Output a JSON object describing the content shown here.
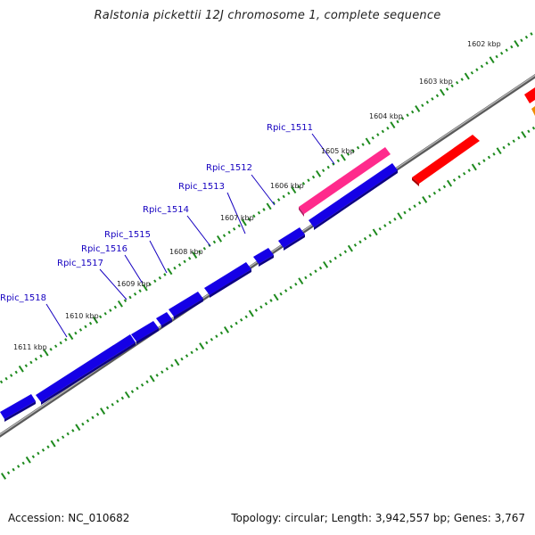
{
  "title": "Ralstonia pickettii 12J chromosome 1, complete sequence",
  "footer": {
    "accession": "Accession: NC_010682",
    "stats": "Topology: circular; Length: 3,942,557 bp; Genes: 3,767"
  },
  "colors": {
    "forward_cds": "#1500e6",
    "reverse_cds": "#ff0000",
    "rna_gene": "#ff2a8c",
    "other_feature": "#f08c00",
    "backbone": "#8a8a8a",
    "tick_major": "#1e8a1e",
    "tick_minor": "#1e8a1e",
    "gene_label": "#1500c0",
    "kbp_label": "#222222"
  },
  "kbp_labels": [
    "1602 kbp",
    "1603 kbp",
    "1604 kbp",
    "1605 kbp",
    "1606 kbp",
    "1607 kbp",
    "1608 kbp",
    "1609 kbp",
    "1610 kbp",
    "1611 kbp"
  ],
  "gene_labels": [
    "Rpic_1511",
    "Rpic_1512",
    "Rpic_1513",
    "Rpic_1514",
    "Rpic_1515",
    "Rpic_1516",
    "Rpic_1517",
    "Rpic_1518"
  ]
}
